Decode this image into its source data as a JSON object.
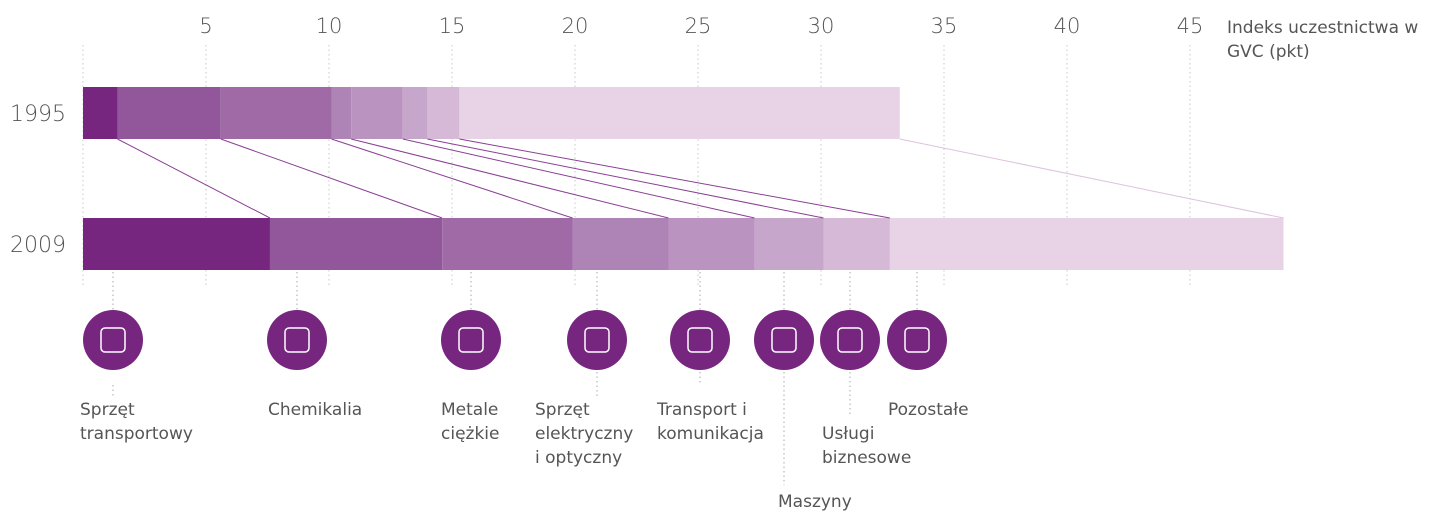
{
  "chart_data": {
    "type": "bar",
    "orientation": "horizontal",
    "stacked": true,
    "x_label": "Indeks uczestnictwa w GVC (pkt)",
    "categories": [
      "1995",
      "2009"
    ],
    "xlim": [
      0,
      50
    ],
    "xticks": [
      5,
      10,
      15,
      20,
      25,
      30,
      35,
      40,
      45
    ],
    "grid": true,
    "series": [
      {
        "name": "Sprzęt transportowy",
        "color": "#76267f",
        "values": [
          1.4,
          7.6
        ]
      },
      {
        "name": "Chemikalia",
        "color": "#91579a",
        "values": [
          4.2,
          7.0
        ]
      },
      {
        "name": "Metale ciężkie",
        "color": "#a06aa7",
        "values": [
          4.5,
          5.3
        ]
      },
      {
        "name": "Sprzęt elektryczny i optyczny",
        "color": "#ae83b5",
        "values": [
          0.8,
          3.9
        ]
      },
      {
        "name": "Transport i komunikacja",
        "color": "#bb93c1",
        "values": [
          2.1,
          3.5
        ]
      },
      {
        "name": "Maszyny",
        "color": "#c7a6cb",
        "values": [
          1.0,
          2.8
        ]
      },
      {
        "name": "Usługi biznesowe",
        "color": "#d5b9d7",
        "values": [
          1.3,
          2.7
        ]
      },
      {
        "name": "Pozostałe",
        "color": "#e8d3e6",
        "values": [
          17.9,
          16.0
        ]
      }
    ]
  }
}
